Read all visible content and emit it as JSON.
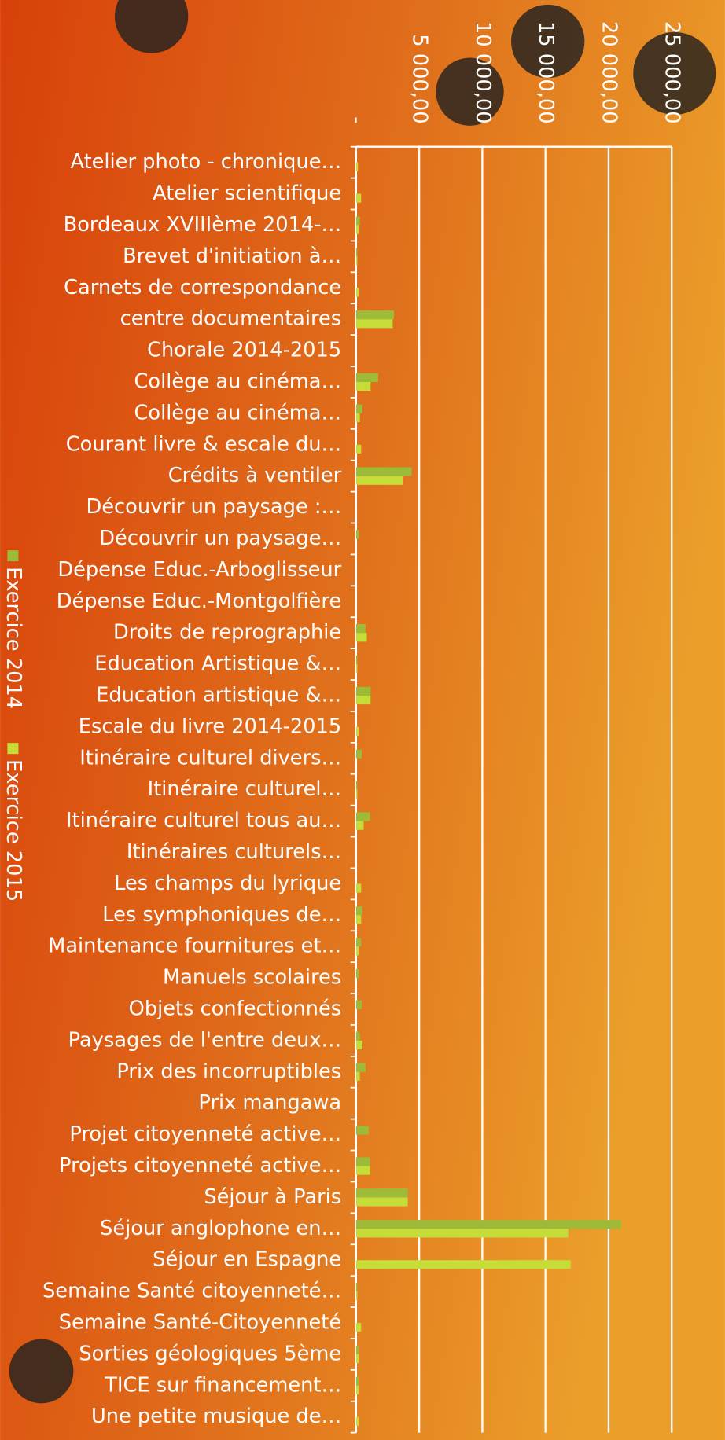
{
  "chart_data": {
    "type": "barh",
    "categories": [
      "Atelier photo - chronique…",
      "Atelier scientifique",
      "Bordeaux XVIIIème 2014-…",
      "Brevet d'initiation à…",
      "Carnets de correspondance",
      "centre documentaires",
      "Chorale 2014-2015",
      "Collège au cinéma…",
      "Collège au cinéma…",
      "Courant livre & escale du…",
      "Crédits à ventiler",
      "Découvrir un paysage :…",
      "Découvrir un paysage…",
      "Dépense Educ.-Arboglisseur",
      "Dépense Educ.-Montgolfière",
      "Droits de reprographie",
      "Education Artistique &…",
      "Education artistique &…",
      "Escale du livre 2014-2015",
      "Itinéraire culturel divers…",
      "Itinéraire culturel…",
      "Itinéraire culturel tous au…",
      "Itinéraires culturels…",
      "Les champs du lyrique",
      "Les symphoniques de…",
      "Maintenance fournitures et…",
      "Manuels scolaires",
      "Objets confectionnés",
      "Paysages de l'entre deux…",
      "Prix des incorruptibles",
      "Prix mangawa",
      "Projet citoyenneté active…",
      "Projets citoyenneté active…",
      "Séjour à Paris",
      "Séjour anglophone en…",
      "Séjour en Espagne",
      "Semaine Santé citoyenneté…",
      "Semaine Santé-Citoyenneté",
      "Sorties géologiques 5ème",
      "TICE sur financement…",
      "Une petite musique de…"
    ],
    "series": [
      {
        "name": "Exercice 2014",
        "color": "#9dbb38",
        "values": [
          0,
          0,
          300,
          100,
          0,
          3000,
          0,
          1750,
          500,
          0,
          4400,
          0,
          200,
          0,
          0,
          750,
          100,
          1150,
          0,
          450,
          100,
          1100,
          0,
          0,
          500,
          400,
          200,
          450,
          300,
          750,
          0,
          1000,
          1100,
          4100,
          21000,
          0,
          100,
          0,
          200,
          200,
          0
        ]
      },
      {
        "name": "Exercice 2015",
        "color": "#c6dc38",
        "values": [
          150,
          400,
          200,
          100,
          200,
          2900,
          0,
          1150,
          300,
          400,
          3700,
          0,
          0,
          0,
          0,
          850,
          100,
          1150,
          200,
          0,
          100,
          600,
          0,
          400,
          400,
          200,
          0,
          0,
          500,
          300,
          0,
          0,
          1100,
          4100,
          16800,
          17000,
          100,
          400,
          200,
          200,
          200
        ]
      }
    ],
    "xlim": [
      0,
      25000
    ],
    "xticks": [
      {
        "value": 0,
        "label": "-"
      },
      {
        "value": 5000,
        "label": "5 000,00"
      },
      {
        "value": 10000,
        "label": "10 000,00"
      },
      {
        "value": 15000,
        "label": "15 000,00"
      },
      {
        "value": 20000,
        "label": "20 000,00"
      },
      {
        "value": 25000,
        "label": "25 000,00"
      }
    ],
    "grid": true,
    "legend": "left"
  }
}
